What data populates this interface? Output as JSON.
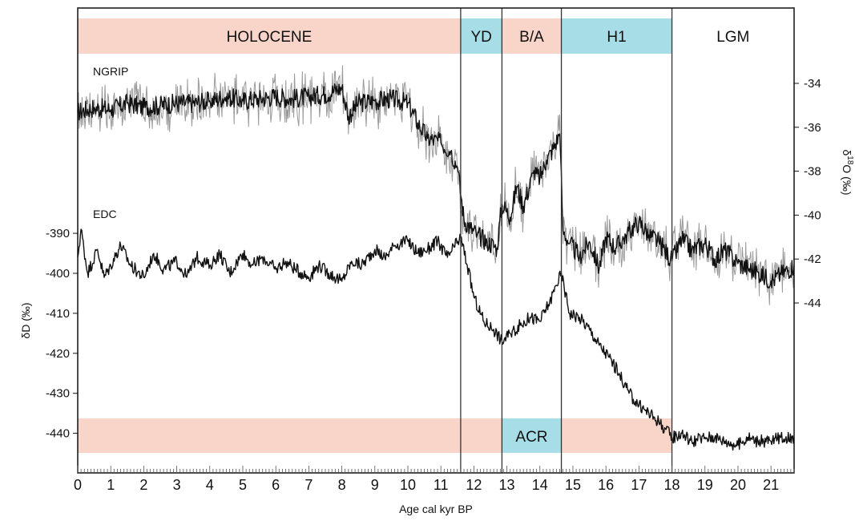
{
  "chart_data": {
    "type": "line",
    "xlabel": "Age cal kyr BP",
    "xlim": [
      0,
      21.7
    ],
    "x_ticks": [
      0,
      1,
      2,
      3,
      4,
      5,
      6,
      7,
      8,
      9,
      10,
      11,
      12,
      13,
      14,
      15,
      16,
      17,
      18,
      19,
      20,
      21
    ],
    "left_axis": {
      "label": "δD (‰)",
      "ticks": [
        -390,
        -400,
        -410,
        -420,
        -430,
        -440
      ],
      "ylim": [
        -448,
        -385
      ]
    },
    "right_axis": {
      "label_prefix": "δ",
      "label_sup": "18",
      "label_suffix": "O (‰)",
      "ticks": [
        -34,
        -36,
        -38,
        -40,
        -42,
        -44
      ],
      "ylim": [
        -46.1,
        -25.3
      ]
    },
    "period_boundaries": [
      11.6,
      12.85,
      14.65,
      18.0
    ],
    "top_bands": [
      {
        "label": "HOLOCENE",
        "x0": 0,
        "x1": 11.6,
        "color": "#f9d4c8"
      },
      {
        "label": "YD",
        "x0": 11.6,
        "x1": 12.85,
        "color": "#a6dde6"
      },
      {
        "label": "B/A",
        "x0": 12.85,
        "x1": 14.65,
        "color": "#f9d4c8"
      },
      {
        "label": "H1",
        "x0": 14.65,
        "x1": 18.0,
        "color": "#a6dde6"
      },
      {
        "label": "LGM",
        "x0": 18.0,
        "x1": 21.7,
        "color": "#ffffff"
      }
    ],
    "bottom_bands": [
      {
        "label": "",
        "x0": 0,
        "x1": 12.85,
        "color": "#f9d4c8"
      },
      {
        "label": "ACR",
        "x0": 12.85,
        "x1": 14.65,
        "color": "#a6dde6"
      },
      {
        "label": "",
        "x0": 14.65,
        "x1": 18.0,
        "color": "#f9d4c8"
      }
    ],
    "series": [
      {
        "name": "NGRIP",
        "axis": "right",
        "color": "#111111",
        "raw_color": "#9a9a9a",
        "x": [
          0,
          0.5,
          1,
          1.5,
          2,
          2.5,
          3,
          3.5,
          4,
          4.5,
          5,
          5.5,
          6,
          6.5,
          7,
          7.5,
          8,
          8.2,
          8.5,
          9,
          9.5,
          10,
          10.3,
          10.6,
          11,
          11.3,
          11.5,
          11.7,
          11.9,
          12.1,
          12.4,
          12.7,
          12.85,
          13.1,
          13.3,
          13.5,
          13.8,
          14,
          14.2,
          14.4,
          14.6,
          14.7,
          14.9,
          15.2,
          15.5,
          15.8,
          16,
          16.3,
          16.6,
          17,
          17.3,
          17.6,
          18,
          18.3,
          18.6,
          19,
          19.3,
          19.6,
          20,
          20.3,
          20.6,
          21,
          21.3,
          21.7
        ],
        "y": [
          -35.3,
          -35.1,
          -35.2,
          -34.9,
          -35.1,
          -35.0,
          -34.9,
          -34.9,
          -34.8,
          -34.6,
          -34.8,
          -34.7,
          -34.6,
          -34.7,
          -34.6,
          -34.5,
          -34.2,
          -35.5,
          -34.9,
          -34.8,
          -34.7,
          -34.9,
          -35.8,
          -36.5,
          -36.7,
          -37.1,
          -37.8,
          -40.2,
          -40.6,
          -40.9,
          -41.2,
          -41.5,
          -39.5,
          -40.1,
          -38.7,
          -39.6,
          -38.1,
          -38.3,
          -37.5,
          -37.0,
          -36.3,
          -40.7,
          -41.3,
          -41.9,
          -41.2,
          -42.4,
          -41.0,
          -41.5,
          -40.9,
          -40.3,
          -40.9,
          -41.2,
          -42.1,
          -41.1,
          -41.6,
          -41.3,
          -42.0,
          -41.6,
          -42.2,
          -42.4,
          -42.6,
          -43.0,
          -42.7,
          -42.3
        ]
      },
      {
        "name": "EDC",
        "axis": "left",
        "color": "#111111",
        "x": [
          0,
          0.1,
          0.3,
          0.6,
          0.8,
          1,
          1.3,
          1.6,
          2,
          2.3,
          2.6,
          3,
          3.3,
          3.6,
          4,
          4.3,
          4.6,
          5,
          5.3,
          5.6,
          6,
          6.3,
          6.6,
          7,
          7.3,
          7.6,
          8,
          8.3,
          8.6,
          9,
          9.3,
          9.6,
          10,
          10.3,
          10.6,
          10.9,
          11.2,
          11.6,
          11.8,
          12,
          12.3,
          12.6,
          12.85,
          13.1,
          13.4,
          13.7,
          14,
          14.3,
          14.5,
          14.65,
          14.9,
          15.2,
          15.5,
          15.8,
          16.1,
          16.4,
          16.7,
          17,
          17.3,
          17.6,
          18,
          18.3,
          18.6,
          19,
          19.3,
          19.6,
          20,
          20.3,
          20.6,
          21,
          21.3,
          21.7
        ],
        "y": [
          -396,
          -389,
          -400,
          -394,
          -401,
          -398,
          -393,
          -398,
          -401,
          -395,
          -399,
          -397,
          -401,
          -396,
          -398,
          -395,
          -400,
          -395,
          -398,
          -396,
          -399,
          -397,
          -399,
          -401,
          -398,
          -400,
          -402,
          -397,
          -398,
          -394,
          -396,
          -393,
          -392,
          -395,
          -394,
          -392,
          -396,
          -391,
          -398,
          -406,
          -412,
          -414,
          -417,
          -415,
          -413,
          -411,
          -412,
          -407,
          -403,
          -400,
          -410,
          -411,
          -414,
          -418,
          -421,
          -425,
          -430,
          -433,
          -435,
          -437,
          -441,
          -440,
          -442,
          -441,
          -441,
          -442,
          -443,
          -441,
          -442,
          -442,
          -441,
          -441
        ]
      }
    ]
  }
}
